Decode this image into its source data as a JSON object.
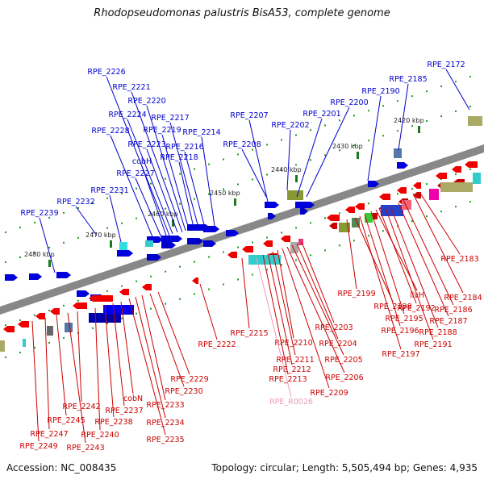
{
  "title": "Rhodopseudomonas palustris BisA53, complete genome",
  "footer": {
    "accession": "Accession: NC_008435",
    "summary": "Topology: circular; Length: 5,505,494 bp; Genes: 4,935"
  },
  "kbp_ticks": [
    "2420 kbp",
    "2430 kbp",
    "2440 kbp",
    "2450 kbp",
    "2460 kbp",
    "2470 kbp",
    "2480 kbp"
  ],
  "colors": {
    "forward_label": "#0000cc",
    "reverse_label": "#cc0000",
    "rna_label": "#ee99bb",
    "backbone": "#888888",
    "tick": "#229922"
  },
  "forward_genes": [
    "RPE_2172",
    "RPE_2185",
    "RPE_2190",
    "RPE_2200",
    "RPE_2201",
    "RPE_2202",
    "RPE_2207",
    "RPE_2208",
    "RPE_2214",
    "RPE_2216",
    "RPE_2217",
    "RPE_2218",
    "RPE_2219",
    "RPE_2220",
    "RPE_2221",
    "RPE_2223",
    "RPE_2224",
    "RPE_2226",
    "cobH",
    "RPE_2227",
    "RPE_2228",
    "RPE_2231",
    "RPE_2232",
    "RPE_2239"
  ],
  "reverse_genes": [
    "RPE_2183",
    "RPE_2184",
    "RPE_2186",
    "RPE_2187",
    "RPE_2188",
    "RPE_2191",
    "RPE_2192",
    "ilvH",
    "RPE_2195",
    "RPE_2196",
    "RPE_2197",
    "RPE_2198",
    "RPE_2199",
    "RPE_2203",
    "RPE_2204",
    "RPE_2205",
    "RPE_2206",
    "RPE_2209",
    "RPE_2210",
    "RPE_2211",
    "RPE_2212",
    "RPE_2213",
    "RPE_2215",
    "RPE_2222",
    "RPE_2229",
    "RPE_2230",
    "RPE_2233",
    "RPE_2234",
    "RPE_2235",
    "cobN",
    "RPE_2237",
    "RPE_2238",
    "RPE_2240",
    "RPE_2242",
    "RPE_2243",
    "RPE_2245",
    "RPE_2247",
    "RPE_2249"
  ],
  "rna_genes": [
    "RPE_R0026"
  ]
}
